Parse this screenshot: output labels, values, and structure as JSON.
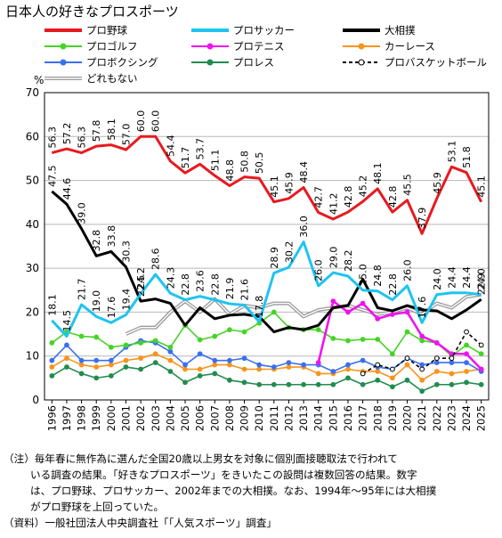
{
  "title": "日本人の好きなプロスポーツ",
  "notes": {
    "line1": "（注）毎年春に無作為に選んだ全国20歳以上男女を対象に個別面接聴取法で行われて",
    "line2": "いる調査の結果。「好きなプロスポーツ」をきいたこの設問は複数回答の結果。数字",
    "line3": "は、プロ野球、プロサッカー、2002年までの大相撲。なお、1994年～95年には大相撲",
    "line4": "がプロ野球を上回っていた。",
    "line5": "（資料）一般社団法人中央調査社「「人気スポーツ」調査」"
  },
  "chart_data": {
    "type": "line",
    "unit_label": "%",
    "ylim": [
      0,
      70
    ],
    "yticks": [
      0,
      10,
      20,
      30,
      40,
      50,
      60,
      70
    ],
    "grid": "horizontal",
    "legend_position": "top",
    "x": [
      "1996",
      "1997",
      "1998",
      "1999",
      "2000",
      "2001",
      "2002",
      "2003",
      "2004",
      "2005",
      "2006",
      "2007",
      "2008",
      "2009",
      "2010",
      "2011",
      "2012",
      "2013",
      "2014",
      "2015",
      "2016",
      "2017",
      "2018",
      "2019",
      "2020",
      "2021",
      "2022",
      "2023",
      "2024",
      "2025"
    ],
    "series": [
      {
        "name": "プロ野球",
        "color": "#e8191f",
        "dash": "solid",
        "marker": "none",
        "values": [
          56.3,
          57.2,
          56.3,
          57.8,
          58.1,
          57.0,
          60.0,
          60.0,
          54.4,
          51.7,
          53.7,
          51.1,
          48.8,
          50.8,
          50.5,
          45.1,
          45.9,
          48.4,
          42.7,
          41.2,
          42.8,
          45.2,
          48.1,
          42.8,
          45.5,
          37.9,
          45.9,
          53.1,
          51.8,
          45.1
        ],
        "labels": [
          "56.3",
          "57.2",
          "56.3",
          "57.8",
          "58.1",
          "57.0",
          "60.0",
          "60.0",
          "54.4",
          "51.7",
          "53.7",
          "51.1",
          "48.8",
          "50.8",
          "50.5",
          "45.1",
          "45.9",
          "48.4",
          "42.7",
          "41.2",
          "42.8",
          "45.2",
          "48.1",
          "42.8",
          "45.5",
          "37.9",
          "45.9",
          "53.1",
          "51.8",
          "45.1"
        ]
      },
      {
        "name": "プロサッカー",
        "color": "#1ec4ef",
        "dash": "solid",
        "marker": "none",
        "values": [
          18.1,
          14.5,
          21.7,
          19.0,
          17.6,
          19.4,
          24.2,
          28.6,
          24.3,
          22.8,
          23.6,
          22.8,
          21.9,
          21.6,
          17.8,
          28.9,
          30.2,
          36.0,
          26.0,
          29.0,
          28.2,
          25.0,
          24.8,
          22.8,
          26.0,
          17.6,
          24.0,
          24.4,
          24.4,
          24.0
        ],
        "labels": [
          "18.1",
          "14.5",
          "21.7",
          "19.0",
          "17.6",
          "19.4",
          "24.2",
          "28.6",
          "24.3",
          "22.8",
          "23.6",
          "22.8",
          "21.9",
          "21.6",
          "17.8",
          "28.9",
          "30.2",
          "36.0",
          "26.0",
          "29.0",
          "28.2",
          "25.0",
          "24.8",
          "22.8",
          "26.0",
          "17.6",
          "24.0",
          "24.4",
          "24.4",
          "24.0"
        ]
      },
      {
        "name": "大相撲",
        "color": "#000000",
        "dash": "solid",
        "marker": "none",
        "values": [
          47.5,
          44.6,
          39.0,
          32.8,
          33.8,
          30.3,
          22.5,
          23.0,
          22.0,
          17.0,
          21.0,
          18.5,
          19.3,
          19.5,
          19.0,
          15.5,
          16.5,
          16.0,
          17.0,
          21.0,
          21.5,
          27.5,
          21.0,
          20.3,
          21.5,
          20.5,
          20.3,
          18.5,
          20.5,
          22.9
        ],
        "labels": [
          "47.5",
          "44.6",
          "39.0",
          "32.8",
          "33.8",
          "30.3",
          "22.5",
          "",
          "",
          "",
          "",
          "",
          "",
          "",
          "",
          "",
          "",
          "",
          "",
          "",
          "",
          "",
          "",
          "",
          "",
          "",
          "",
          "",
          "",
          "22.9"
        ]
      },
      {
        "name": "プロゴルフ",
        "color": "#46d326",
        "dash": "solid",
        "marker": "dot",
        "values": [
          13.0,
          15.5,
          14.5,
          14.3,
          12.0,
          12.5,
          13.0,
          13.5,
          12.0,
          17.0,
          13.7,
          14.5,
          16.0,
          15.5,
          17.5,
          20.0,
          16.5,
          16.0,
          16.0,
          14.0,
          13.5,
          13.8,
          13.8,
          10.5,
          15.5,
          13.5,
          13.0,
          10.0,
          12.5,
          10.5
        ]
      },
      {
        "name": "プロテニス",
        "color": "#ee14ee",
        "dash": "solid",
        "marker": "dot",
        "values": [
          null,
          null,
          null,
          null,
          null,
          null,
          null,
          null,
          null,
          null,
          null,
          null,
          null,
          null,
          null,
          null,
          null,
          null,
          8.5,
          22.5,
          20.0,
          22.0,
          18.5,
          19.5,
          20.0,
          14.5,
          13.0,
          10.5,
          10.5,
          7.0
        ]
      },
      {
        "name": "カーレース",
        "color": "#f7941d",
        "dash": "solid",
        "marker": "dot",
        "values": [
          7.5,
          9.5,
          8.0,
          7.5,
          8.0,
          9.0,
          9.5,
          10.5,
          9.0,
          7.0,
          7.0,
          8.0,
          8.0,
          7.0,
          7.0,
          7.0,
          7.5,
          7.5,
          6.0,
          6.0,
          7.0,
          6.5,
          6.5,
          5.0,
          8.0,
          4.5,
          6.5,
          6.0,
          6.5,
          7.0
        ]
      },
      {
        "name": "プロボクシング",
        "color": "#3a6ff0",
        "dash": "solid",
        "marker": "dot",
        "values": [
          9.0,
          12.5,
          9.0,
          9.0,
          9.0,
          12.0,
          13.5,
          13.0,
          11.0,
          8.0,
          10.5,
          9.0,
          9.0,
          9.5,
          8.0,
          7.5,
          8.5,
          8.0,
          8.0,
          6.5,
          8.0,
          9.0,
          7.5,
          7.0,
          9.5,
          8.0,
          8.5,
          8.5,
          8.5,
          6.5
        ]
      },
      {
        "name": "プロレス",
        "color": "#218c4f",
        "dash": "solid",
        "marker": "dot",
        "values": [
          5.5,
          7.5,
          6.0,
          5.0,
          5.5,
          7.5,
          7.0,
          8.5,
          6.5,
          4.0,
          5.5,
          6.0,
          4.5,
          4.0,
          3.5,
          3.5,
          3.5,
          3.5,
          3.5,
          3.5,
          5.0,
          3.5,
          4.5,
          3.0,
          4.5,
          2.0,
          3.5,
          3.5,
          4.0,
          3.5
        ]
      },
      {
        "name": "プロバスケットボール",
        "color": "#000000",
        "dash": "dashed",
        "marker": "open",
        "values": [
          null,
          null,
          null,
          null,
          null,
          null,
          null,
          null,
          null,
          null,
          null,
          null,
          null,
          null,
          null,
          null,
          null,
          null,
          null,
          null,
          null,
          6.0,
          8.0,
          7.0,
          9.5,
          7.0,
          9.5,
          9.5,
          15.5,
          12.5
        ]
      },
      {
        "name": "どれもない",
        "color": "#9a9a9a",
        "dash": "double",
        "marker": "none",
        "values": [
          null,
          null,
          null,
          null,
          null,
          15.0,
          16.5,
          16.5,
          20.0,
          22.5,
          20.0,
          23.0,
          19.5,
          21.5,
          21.0,
          22.0,
          22.0,
          19.0,
          20.5,
          21.0,
          21.5,
          20.5,
          19.5,
          20.0,
          21.0,
          19.5,
          22.0,
          21.0,
          23.5,
          24.0
        ]
      }
    ]
  }
}
